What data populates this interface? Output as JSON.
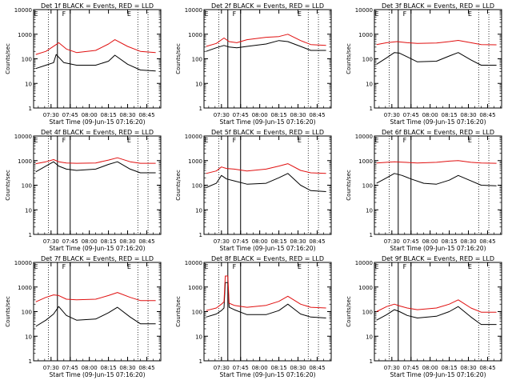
{
  "chart_data": [
    {
      "type": "line",
      "title": "Det 1f BLACK = Events, RED = LLD",
      "xlabel": "Start Time (09-Jun-15 07:16:20)",
      "ylabel": "Counts/sec",
      "y_scale": "log",
      "ylim": [
        1,
        10000
      ],
      "x_ticks": [
        "07:30",
        "07:45",
        "08:00",
        "08:15",
        "08:30",
        "08:45"
      ],
      "y_ticks": [
        "1",
        "10",
        "100",
        "1000",
        "10000"
      ],
      "markers": {
        "dotted": [
          "07:28",
          "08:38",
          "08:46"
        ],
        "solid": [
          "07:35",
          "07:45"
        ],
        "letters": [
          {
            "time": "07:16",
            "text": "E"
          },
          {
            "time": "07:38",
            "text": "F"
          },
          {
            "time": "08:29",
            "text": "E"
          }
        ]
      },
      "series": [
        {
          "color": "#000000",
          "x": [
            "07:18",
            "07:26",
            "07:32",
            "07:34",
            "07:40",
            "07:50",
            "08:05",
            "08:15",
            "08:20",
            "08:30",
            "08:40",
            "08:52"
          ],
          "y": [
            40,
            55,
            70,
            150,
            70,
            55,
            55,
            80,
            140,
            60,
            35,
            32
          ]
        },
        {
          "color": "#e01010",
          "x": [
            "07:18",
            "07:26",
            "07:34",
            "07:36",
            "07:42",
            "07:50",
            "08:05",
            "08:15",
            "08:20",
            "08:30",
            "08:40",
            "08:52"
          ],
          "y": [
            150,
            200,
            380,
            450,
            250,
            180,
            220,
            400,
            600,
            320,
            200,
            180
          ]
        }
      ]
    },
    {
      "type": "line",
      "title": "Det 2f BLACK = Events, RED = LLD",
      "xlabel": "Start Time (09-Jun-15 07:16:20)",
      "ylabel": "Counts/sec",
      "y_scale": "log",
      "ylim": [
        1,
        10000
      ],
      "x_ticks": [
        "07:30",
        "07:45",
        "08:00",
        "08:15",
        "08:30",
        "08:45"
      ],
      "y_ticks": [
        "1",
        "10",
        "100",
        "1000",
        "10000"
      ],
      "markers": {
        "dotted": [
          "07:28",
          "08:38",
          "08:46"
        ],
        "solid": [
          "07:35",
          "07:45"
        ],
        "letters": [
          {
            "time": "07:16",
            "text": "E"
          },
          {
            "time": "07:38",
            "text": "F"
          },
          {
            "time": "08:29",
            "text": "E"
          }
        ]
      },
      "series": [
        {
          "color": "#000000",
          "x": [
            "07:18",
            "07:26",
            "07:32",
            "07:36",
            "07:42",
            "07:50",
            "08:05",
            "08:15",
            "08:22",
            "08:32",
            "08:40",
            "08:52"
          ],
          "y": [
            200,
            280,
            350,
            300,
            280,
            320,
            400,
            550,
            500,
            320,
            220,
            220
          ]
        },
        {
          "color": "#e01010",
          "x": [
            "07:18",
            "07:26",
            "07:32",
            "07:36",
            "07:42",
            "07:50",
            "08:05",
            "08:15",
            "08:22",
            "08:32",
            "08:40",
            "08:52"
          ],
          "y": [
            320,
            420,
            700,
            500,
            450,
            600,
            750,
            800,
            1000,
            550,
            380,
            350
          ]
        }
      ]
    },
    {
      "type": "line",
      "title": "Det 3f BLACK = Events, RED = LLD",
      "xlabel": "Start Time (09-Jun-15 07:16:20)",
      "ylabel": "Counts/sec",
      "y_scale": "log",
      "ylim": [
        1,
        10000
      ],
      "x_ticks": [
        "07:30",
        "07:45",
        "08:00",
        "08:15",
        "08:30",
        "08:45"
      ],
      "y_ticks": [
        "1",
        "10",
        "100",
        "1000",
        "10000"
      ],
      "markers": {
        "dotted": [
          "07:28",
          "08:38",
          "08:46"
        ],
        "solid": [
          "07:35",
          "07:45"
        ],
        "letters": [
          {
            "time": "07:16",
            "text": "E"
          },
          {
            "time": "07:38",
            "text": "F"
          },
          {
            "time": "08:29",
            "text": "E"
          }
        ]
      },
      "series": [
        {
          "color": "#000000",
          "x": [
            "07:18",
            "07:26",
            "07:32",
            "07:36",
            "07:42",
            "07:50",
            "08:05",
            "08:15",
            "08:22",
            "08:32",
            "08:40",
            "08:52"
          ],
          "y": [
            60,
            110,
            180,
            170,
            120,
            75,
            80,
            130,
            180,
            90,
            55,
            55
          ]
        },
        {
          "color": "#e01010",
          "x": [
            "07:18",
            "07:26",
            "07:34",
            "07:42",
            "07:50",
            "08:05",
            "08:15",
            "08:22",
            "08:32",
            "08:40",
            "08:52"
          ],
          "y": [
            380,
            450,
            500,
            450,
            420,
            440,
            500,
            560,
            450,
            380,
            370
          ]
        }
      ]
    },
    {
      "type": "line",
      "title": "Det 4f BLACK = Events, RED = LLD",
      "xlabel": "Start Time (09-Jun-15 07:16:20)",
      "ylabel": "Counts/sec",
      "y_scale": "log",
      "ylim": [
        1,
        10000
      ],
      "x_ticks": [
        "07:30",
        "07:45",
        "08:00",
        "08:15",
        "08:30",
        "08:45"
      ],
      "y_ticks": [
        "1",
        "10",
        "100",
        "1000",
        "10000"
      ],
      "markers": {
        "dotted": [
          "07:28",
          "08:38",
          "08:46"
        ],
        "solid": [
          "07:35",
          "07:45"
        ],
        "letters": [
          {
            "time": "07:16",
            "text": "E"
          },
          {
            "time": "07:38",
            "text": "F"
          },
          {
            "time": "08:29",
            "text": "E"
          }
        ]
      },
      "series": [
        {
          "color": "#000000",
          "x": [
            "07:18",
            "07:26",
            "07:32",
            "07:36",
            "07:42",
            "07:50",
            "08:05",
            "08:15",
            "08:22",
            "08:32",
            "08:40",
            "08:52"
          ],
          "y": [
            350,
            600,
            900,
            600,
            450,
            400,
            450,
            700,
            900,
            450,
            320,
            320
          ]
        },
        {
          "color": "#e01010",
          "x": [
            "07:18",
            "07:26",
            "07:32",
            "07:36",
            "07:42",
            "07:50",
            "08:05",
            "08:15",
            "08:22",
            "08:32",
            "08:40",
            "08:52"
          ],
          "y": [
            750,
            900,
            1100,
            900,
            800,
            780,
            800,
            1050,
            1300,
            900,
            780,
            780
          ]
        }
      ]
    },
    {
      "type": "line",
      "title": "Det 5f BLACK = Events, RED = LLD",
      "xlabel": "Start Time (09-Jun-15 07:16:20)",
      "ylabel": "Counts/sec",
      "y_scale": "log",
      "ylim": [
        1,
        10000
      ],
      "x_ticks": [
        "07:30",
        "07:45",
        "08:00",
        "08:15",
        "08:30",
        "08:45"
      ],
      "y_ticks": [
        "1",
        "10",
        "100",
        "1000",
        "10000"
      ],
      "markers": {
        "dotted": [
          "07:28",
          "08:38",
          "08:46"
        ],
        "solid": [
          "07:35",
          "07:45"
        ],
        "letters": [
          {
            "time": "07:16",
            "text": "E"
          },
          {
            "time": "07:38",
            "text": "F"
          },
          {
            "time": "08:29",
            "text": "E"
          }
        ]
      },
      "series": [
        {
          "color": "#000000",
          "x": [
            "07:18",
            "07:26",
            "07:30",
            "07:34",
            "07:40",
            "07:50",
            "08:05",
            "08:15",
            "08:22",
            "08:32",
            "08:40",
            "08:52"
          ],
          "y": [
            80,
            120,
            250,
            180,
            150,
            110,
            120,
            200,
            300,
            100,
            60,
            55
          ]
        },
        {
          "color": "#e01010",
          "x": [
            "07:18",
            "07:26",
            "07:30",
            "07:34",
            "07:40",
            "07:50",
            "08:05",
            "08:15",
            "08:22",
            "08:32",
            "08:40",
            "08:52"
          ],
          "y": [
            300,
            380,
            550,
            480,
            450,
            380,
            450,
            600,
            750,
            400,
            320,
            300
          ]
        }
      ]
    },
    {
      "type": "line",
      "title": "Det 6f BLACK = Events, RED = LLD",
      "xlabel": "Start Time (09-Jun-15 07:16:20)",
      "ylabel": "Counts/sec",
      "y_scale": "log",
      "ylim": [
        1,
        10000
      ],
      "x_ticks": [
        "07:30",
        "07:45",
        "08:00",
        "08:15",
        "08:30",
        "08:45"
      ],
      "y_ticks": [
        "1",
        "10",
        "100",
        "1000",
        "10000"
      ],
      "markers": {
        "dotted": [
          "07:28",
          "08:38",
          "08:46"
        ],
        "solid": [
          "07:35",
          "07:45"
        ],
        "letters": [
          {
            "time": "07:16",
            "text": "E"
          },
          {
            "time": "07:38",
            "text": "F"
          },
          {
            "time": "08:29",
            "text": "E"
          }
        ]
      },
      "series": [
        {
          "color": "#000000",
          "x": [
            "07:18",
            "07:26",
            "07:32",
            "07:38",
            "07:45",
            "07:55",
            "08:05",
            "08:15",
            "08:22",
            "08:32",
            "08:40",
            "08:52"
          ],
          "y": [
            120,
            200,
            300,
            250,
            180,
            120,
            110,
            160,
            250,
            150,
            100,
            95
          ]
        },
        {
          "color": "#e01010",
          "x": [
            "07:18",
            "07:26",
            "07:32",
            "07:40",
            "07:50",
            "08:05",
            "08:15",
            "08:22",
            "08:32",
            "08:40",
            "08:52"
          ],
          "y": [
            800,
            850,
            900,
            850,
            800,
            850,
            950,
            1000,
            850,
            800,
            780
          ]
        }
      ]
    },
    {
      "type": "line",
      "title": "Det 7f BLACK = Events, RED = LLD",
      "xlabel": "Start Time (09-Jun-15 07:16:20)",
      "ylabel": "Counts/sec",
      "y_scale": "log",
      "ylim": [
        1,
        10000
      ],
      "x_ticks": [
        "07:30",
        "07:45",
        "08:00",
        "08:15",
        "08:30",
        "08:45"
      ],
      "y_ticks": [
        "1",
        "10",
        "100",
        "1000",
        "10000"
      ],
      "markers": {
        "dotted": [
          "07:28",
          "08:38",
          "08:46"
        ],
        "solid": [
          "07:35",
          "07:45"
        ],
        "letters": [
          {
            "time": "07:16",
            "text": "E"
          },
          {
            "time": "07:38",
            "text": "F"
          },
          {
            "time": "08:29",
            "text": "E"
          }
        ]
      },
      "series": [
        {
          "color": "#000000",
          "x": [
            "07:18",
            "07:26",
            "07:32",
            "07:36",
            "07:42",
            "07:50",
            "08:05",
            "08:15",
            "08:22",
            "08:32",
            "08:40",
            "08:52"
          ],
          "y": [
            25,
            45,
            80,
            160,
            70,
            45,
            50,
            90,
            150,
            60,
            32,
            32
          ]
        },
        {
          "color": "#e01010",
          "x": [
            "07:18",
            "07:26",
            "07:32",
            "07:36",
            "07:42",
            "07:50",
            "08:05",
            "08:15",
            "08:22",
            "08:32",
            "08:40",
            "08:52"
          ],
          "y": [
            250,
            380,
            480,
            450,
            320,
            300,
            320,
            450,
            600,
            380,
            280,
            280
          ]
        }
      ]
    },
    {
      "type": "line",
      "title": "Det 8f BLACK = Events, RED = LLD",
      "xlabel": "Start Time (09-Jun-15 07:16:20)",
      "ylabel": "Counts/sec",
      "y_scale": "log",
      "ylim": [
        1,
        10000
      ],
      "x_ticks": [
        "07:30",
        "07:45",
        "08:00",
        "08:15",
        "08:30",
        "08:45"
      ],
      "y_ticks": [
        "1",
        "10",
        "100",
        "1000",
        "10000"
      ],
      "markers": {
        "dotted": [
          "07:28",
          "08:38",
          "08:46"
        ],
        "solid": [
          "07:35",
          "07:45"
        ],
        "letters": [
          {
            "time": "07:16",
            "text": "E"
          },
          {
            "time": "07:38",
            "text": "F"
          },
          {
            "time": "08:29",
            "text": "E"
          }
        ]
      },
      "series": [
        {
          "color": "#000000",
          "x": [
            "07:18",
            "07:26",
            "07:30",
            "07:32",
            "07:33",
            "07:35",
            "07:36",
            "07:40",
            "07:50",
            "08:05",
            "08:15",
            "08:22",
            "08:32",
            "08:40",
            "08:52"
          ],
          "y": [
            60,
            80,
            110,
            140,
            1500,
            1500,
            150,
            120,
            75,
            75,
            110,
            200,
            80,
            60,
            55
          ]
        },
        {
          "color": "#e01010",
          "x": [
            "07:18",
            "07:26",
            "07:30",
            "07:32",
            "07:33",
            "07:35",
            "07:36",
            "07:40",
            "07:50",
            "08:05",
            "08:15",
            "08:22",
            "08:32",
            "08:40",
            "08:52"
          ],
          "y": [
            110,
            140,
            200,
            250,
            2800,
            2800,
            220,
            180,
            150,
            180,
            260,
            420,
            200,
            150,
            140
          ]
        }
      ]
    },
    {
      "type": "line",
      "title": "Det 9f BLACK = Events, RED = LLD",
      "xlabel": "Start Time (09-Jun-15 07:16:20)",
      "ylabel": "Counts/sec",
      "y_scale": "log",
      "ylim": [
        1,
        10000
      ],
      "x_ticks": [
        "07:30",
        "07:45",
        "08:00",
        "08:15",
        "08:30",
        "08:45"
      ],
      "y_ticks": [
        "1",
        "10",
        "100",
        "1000",
        "10000"
      ],
      "markers": {
        "dotted": [
          "07:28",
          "08:38",
          "08:46"
        ],
        "solid": [
          "07:35",
          "07:45"
        ],
        "letters": [
          {
            "time": "07:16",
            "text": "E"
          },
          {
            "time": "07:38",
            "text": "F"
          },
          {
            "time": "08:29",
            "text": "E"
          }
        ]
      },
      "series": [
        {
          "color": "#000000",
          "x": [
            "07:18",
            "07:26",
            "07:32",
            "07:36",
            "07:42",
            "07:50",
            "08:05",
            "08:15",
            "08:22",
            "08:32",
            "08:40",
            "08:52"
          ],
          "y": [
            45,
            75,
            120,
            100,
            70,
            55,
            65,
            100,
            160,
            60,
            30,
            30
          ]
        },
        {
          "color": "#e01010",
          "x": [
            "07:18",
            "07:26",
            "07:32",
            "07:36",
            "07:42",
            "07:50",
            "08:05",
            "08:15",
            "08:22",
            "08:32",
            "08:40",
            "08:52"
          ],
          "y": [
            100,
            160,
            200,
            170,
            140,
            120,
            140,
            200,
            300,
            140,
            95,
            95
          ]
        }
      ]
    }
  ]
}
